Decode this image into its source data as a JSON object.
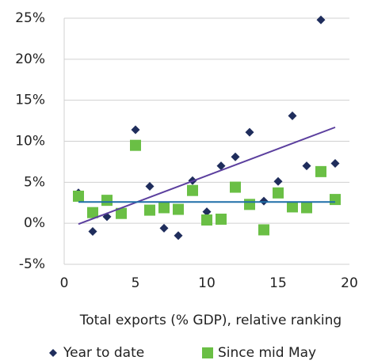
{
  "chart_data": {
    "type": "scatter",
    "x_label": "Total exports (% GDP), relative ranking",
    "xlim": [
      0,
      20
    ],
    "xticks": [
      0,
      5,
      10,
      15,
      20
    ],
    "ylim": [
      -5,
      25
    ],
    "yticks": [
      {
        "value": -5,
        "label": "-5%"
      },
      {
        "value": 0,
        "label": "0%"
      },
      {
        "value": 5,
        "label": "5%"
      },
      {
        "value": 10,
        "label": "10%"
      },
      {
        "value": 15,
        "label": "15%"
      },
      {
        "value": 20,
        "label": "20%"
      },
      {
        "value": 25,
        "label": "25%"
      }
    ],
    "grid": true,
    "legend": "bottom",
    "series": [
      {
        "name": "Year to date",
        "color": "#1f2d5c",
        "marker": "diamond",
        "x": [
          1,
          2,
          3,
          5,
          6,
          7,
          8,
          9,
          10,
          11,
          12,
          13,
          14,
          15,
          16,
          17,
          18,
          19
        ],
        "values": [
          3.7,
          -1.0,
          0.8,
          11.4,
          4.5,
          -0.6,
          -1.5,
          5.2,
          1.4,
          7.0,
          8.1,
          11.1,
          2.7,
          5.1,
          13.1,
          7.0,
          24.8,
          7.3
        ]
      },
      {
        "name": "Since mid May",
        "color": "#6abf45",
        "marker": "square",
        "x": [
          1,
          2,
          3,
          4,
          5,
          6,
          7,
          8,
          9,
          10,
          11,
          12,
          13,
          14,
          15,
          16,
          17,
          18,
          19
        ],
        "values": [
          3.3,
          1.3,
          2.8,
          1.2,
          9.5,
          1.6,
          1.9,
          1.7,
          4.0,
          0.4,
          0.5,
          4.4,
          2.3,
          -0.8,
          3.7,
          2.0,
          1.9,
          6.3,
          2.9
        ]
      }
    ],
    "trendlines": [
      {
        "color": "#5b3f9e",
        "x": [
          1,
          19
        ],
        "values": [
          -0.1,
          11.7
        ]
      },
      {
        "color": "#1f6fa8",
        "x": [
          1,
          19
        ],
        "values": [
          2.6,
          2.6
        ]
      }
    ]
  }
}
